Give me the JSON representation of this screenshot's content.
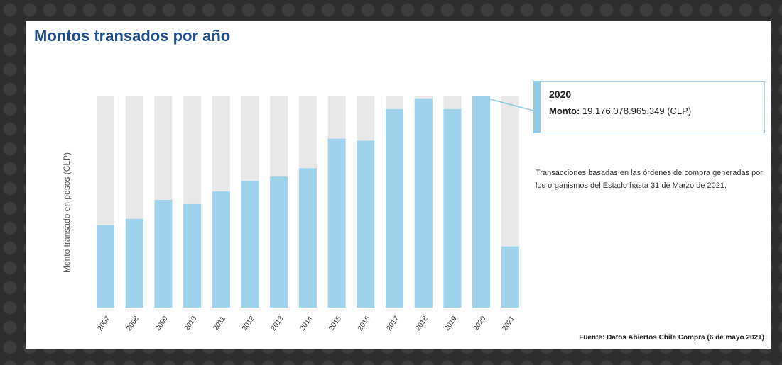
{
  "chart_data": {
    "type": "bar",
    "title": "Montos transados por año",
    "ylabel": "Monto transado en pesos (CLP)",
    "categories": [
      "2007",
      "2008",
      "2009",
      "2010",
      "2011",
      "2012",
      "2013",
      "2014",
      "2015",
      "2016",
      "2017",
      "2018",
      "2019",
      "2020",
      "2021"
    ],
    "values": [
      0.39,
      0.42,
      0.51,
      0.49,
      0.55,
      0.6,
      0.62,
      0.66,
      0.8,
      0.79,
      0.94,
      0.99,
      0.94,
      1.0,
      0.29
    ],
    "value_unit": "fraction of 2020 maximum (19.176.078.965.349 CLP)",
    "ylim": [
      0,
      1
    ],
    "colors": {
      "bar": "#9fd3ec",
      "track": "#e8e8e8"
    },
    "tooltip": {
      "year": "2020",
      "label": "Monto:",
      "value": "19.176.078.965.349 (CLP)"
    },
    "note": "Transacciones basadas en las órdenes de compra generadas por los organismos del Estado hasta 31 de Marzo de 2021.",
    "source": "Fuente: Datos Abiertos Chile Compra (6 de mayo 2021)"
  }
}
